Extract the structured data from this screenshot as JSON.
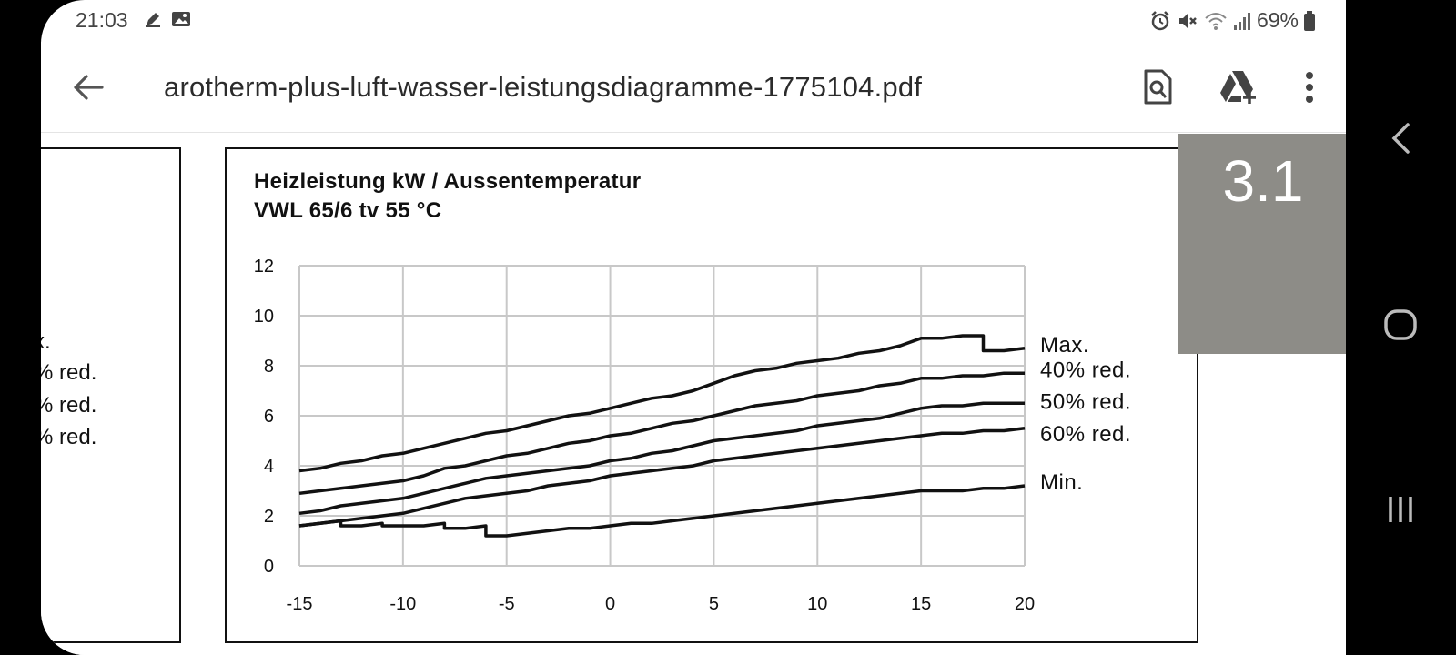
{
  "status_bar": {
    "time": "21:03",
    "left_icons": [
      "pen-notification-icon",
      "image-notification-icon"
    ],
    "right_icons": [
      "alarm-icon",
      "mute-icon",
      "wifi-icon",
      "signal-icon"
    ],
    "battery_text": "69%"
  },
  "app_bar": {
    "title": "arotherm-plus-luft-wasser-leistungsdiagramme-1775104.pdf",
    "actions": [
      "find-in-page-icon",
      "drive-add-icon",
      "more-vert-icon"
    ]
  },
  "left_chart": {
    "labels": [
      "x.",
      "% red.",
      "% red.",
      "% red.",
      "."
    ]
  },
  "section_badge": "3.1",
  "chart_data": {
    "type": "line",
    "title": "Heizleistung kW / Aussentemperatur",
    "subtitle": "VWL 65/6 tv 55 °C",
    "xlabel": "",
    "ylabel": "",
    "xlim": [
      -15,
      20
    ],
    "ylim": [
      0,
      12
    ],
    "x_ticks": [
      -15,
      -10,
      -5,
      0,
      5,
      10,
      15,
      20
    ],
    "y_ticks": [
      0,
      2,
      4,
      6,
      8,
      10,
      12
    ],
    "grid": true,
    "legend": "right, inline at line ends",
    "series": [
      {
        "name": "Max.",
        "points": [
          [
            -15,
            3.8
          ],
          [
            -14,
            3.9
          ],
          [
            -13,
            4.1
          ],
          [
            -12,
            4.2
          ],
          [
            -11,
            4.4
          ],
          [
            -10,
            4.5
          ],
          [
            -9,
            4.7
          ],
          [
            -8,
            4.9
          ],
          [
            -7,
            5.1
          ],
          [
            -6,
            5.3
          ],
          [
            -5,
            5.4
          ],
          [
            -4,
            5.6
          ],
          [
            -3,
            5.8
          ],
          [
            -2,
            6.0
          ],
          [
            -1,
            6.1
          ],
          [
            0,
            6.3
          ],
          [
            1,
            6.5
          ],
          [
            2,
            6.7
          ],
          [
            3,
            6.8
          ],
          [
            4,
            7.0
          ],
          [
            5,
            7.3
          ],
          [
            6,
            7.6
          ],
          [
            7,
            7.8
          ],
          [
            8,
            7.9
          ],
          [
            9,
            8.1
          ],
          [
            10,
            8.2
          ],
          [
            11,
            8.3
          ],
          [
            12,
            8.5
          ],
          [
            13,
            8.6
          ],
          [
            14,
            8.8
          ],
          [
            15,
            9.1
          ],
          [
            16,
            9.1
          ],
          [
            17,
            9.2
          ],
          [
            18,
            9.2
          ],
          [
            18,
            8.6
          ],
          [
            19,
            8.6
          ],
          [
            20,
            8.7
          ]
        ]
      },
      {
        "name": "40% red.",
        "points": [
          [
            -15,
            2.9
          ],
          [
            -14,
            3.0
          ],
          [
            -13,
            3.1
          ],
          [
            -12,
            3.2
          ],
          [
            -11,
            3.3
          ],
          [
            -10,
            3.4
          ],
          [
            -9,
            3.6
          ],
          [
            -8,
            3.9
          ],
          [
            -7,
            4.0
          ],
          [
            -6,
            4.2
          ],
          [
            -5,
            4.4
          ],
          [
            -4,
            4.5
          ],
          [
            -3,
            4.7
          ],
          [
            -2,
            4.9
          ],
          [
            -1,
            5.0
          ],
          [
            0,
            5.2
          ],
          [
            1,
            5.3
          ],
          [
            2,
            5.5
          ],
          [
            3,
            5.7
          ],
          [
            4,
            5.8
          ],
          [
            5,
            6.0
          ],
          [
            6,
            6.2
          ],
          [
            7,
            6.4
          ],
          [
            8,
            6.5
          ],
          [
            9,
            6.6
          ],
          [
            10,
            6.8
          ],
          [
            11,
            6.9
          ],
          [
            12,
            7.0
          ],
          [
            13,
            7.2
          ],
          [
            14,
            7.3
          ],
          [
            15,
            7.5
          ],
          [
            16,
            7.5
          ],
          [
            17,
            7.6
          ],
          [
            18,
            7.6
          ],
          [
            19,
            7.7
          ],
          [
            20,
            7.7
          ]
        ]
      },
      {
        "name": "50% red.",
        "points": [
          [
            -15,
            2.1
          ],
          [
            -14,
            2.2
          ],
          [
            -13,
            2.4
          ],
          [
            -12,
            2.5
          ],
          [
            -11,
            2.6
          ],
          [
            -10,
            2.7
          ],
          [
            -9,
            2.9
          ],
          [
            -8,
            3.1
          ],
          [
            -7,
            3.3
          ],
          [
            -6,
            3.5
          ],
          [
            -5,
            3.6
          ],
          [
            -4,
            3.7
          ],
          [
            -3,
            3.8
          ],
          [
            -2,
            3.9
          ],
          [
            -1,
            4.0
          ],
          [
            0,
            4.2
          ],
          [
            1,
            4.3
          ],
          [
            2,
            4.5
          ],
          [
            3,
            4.6
          ],
          [
            4,
            4.8
          ],
          [
            5,
            5.0
          ],
          [
            6,
            5.1
          ],
          [
            7,
            5.2
          ],
          [
            8,
            5.3
          ],
          [
            9,
            5.4
          ],
          [
            10,
            5.6
          ],
          [
            11,
            5.7
          ],
          [
            12,
            5.8
          ],
          [
            13,
            5.9
          ],
          [
            14,
            6.1
          ],
          [
            15,
            6.3
          ],
          [
            16,
            6.4
          ],
          [
            17,
            6.4
          ],
          [
            18,
            6.5
          ],
          [
            19,
            6.5
          ],
          [
            20,
            6.5
          ]
        ]
      },
      {
        "name": "60% red.",
        "points": [
          [
            -15,
            1.6
          ],
          [
            -14,
            1.7
          ],
          [
            -13,
            1.8
          ],
          [
            -12,
            1.9
          ],
          [
            -11,
            2.0
          ],
          [
            -10,
            2.1
          ],
          [
            -9,
            2.3
          ],
          [
            -8,
            2.5
          ],
          [
            -7,
            2.7
          ],
          [
            -6,
            2.8
          ],
          [
            -5,
            2.9
          ],
          [
            -4,
            3.0
          ],
          [
            -3,
            3.2
          ],
          [
            -2,
            3.3
          ],
          [
            -1,
            3.4
          ],
          [
            0,
            3.6
          ],
          [
            1,
            3.7
          ],
          [
            2,
            3.8
          ],
          [
            3,
            3.9
          ],
          [
            4,
            4.0
          ],
          [
            5,
            4.2
          ],
          [
            6,
            4.3
          ],
          [
            7,
            4.4
          ],
          [
            8,
            4.5
          ],
          [
            9,
            4.6
          ],
          [
            10,
            4.7
          ],
          [
            11,
            4.8
          ],
          [
            12,
            4.9
          ],
          [
            13,
            5.0
          ],
          [
            14,
            5.1
          ],
          [
            15,
            5.2
          ],
          [
            16,
            5.3
          ],
          [
            17,
            5.3
          ],
          [
            18,
            5.4
          ],
          [
            19,
            5.4
          ],
          [
            20,
            5.5
          ]
        ]
      },
      {
        "name": "Min.",
        "points": [
          [
            -15,
            1.6
          ],
          [
            -14,
            1.7
          ],
          [
            -13,
            1.8
          ],
          [
            -13,
            1.6
          ],
          [
            -12,
            1.6
          ],
          [
            -11,
            1.7
          ],
          [
            -11,
            1.6
          ],
          [
            -10,
            1.6
          ],
          [
            -9,
            1.6
          ],
          [
            -8,
            1.7
          ],
          [
            -8,
            1.5
          ],
          [
            -7,
            1.5
          ],
          [
            -6,
            1.6
          ],
          [
            -6,
            1.2
          ],
          [
            -5,
            1.2
          ],
          [
            -4,
            1.3
          ],
          [
            -3,
            1.4
          ],
          [
            -2,
            1.5
          ],
          [
            -1,
            1.5
          ],
          [
            0,
            1.6
          ],
          [
            1,
            1.7
          ],
          [
            2,
            1.7
          ],
          [
            3,
            1.8
          ],
          [
            4,
            1.9
          ],
          [
            5,
            2.0
          ],
          [
            6,
            2.1
          ],
          [
            7,
            2.2
          ],
          [
            8,
            2.3
          ],
          [
            9,
            2.4
          ],
          [
            10,
            2.5
          ],
          [
            11,
            2.6
          ],
          [
            12,
            2.7
          ],
          [
            13,
            2.8
          ],
          [
            14,
            2.9
          ],
          [
            15,
            3.0
          ],
          [
            16,
            3.0
          ],
          [
            17,
            3.0
          ],
          [
            18,
            3.1
          ],
          [
            19,
            3.1
          ],
          [
            20,
            3.2
          ]
        ]
      }
    ]
  },
  "nav_bar": [
    "recents-icon",
    "home-icon",
    "back-nav-icon"
  ]
}
